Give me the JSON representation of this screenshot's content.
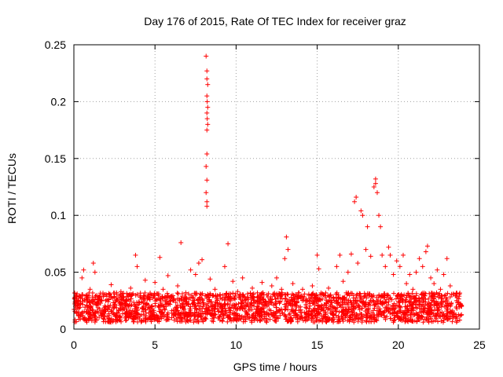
{
  "chart_data": {
    "type": "scatter",
    "title": "Day 176 of 2015, Rate Of TEC Index for receiver graz",
    "xlabel": "GPS time / hours",
    "ylabel": "ROTI / TECUs",
    "xlim": [
      0,
      25
    ],
    "ylim": [
      0,
      0.25
    ],
    "x_ticks": [
      0,
      5,
      10,
      15,
      20,
      25
    ],
    "y_ticks": [
      0,
      0.05,
      0.1,
      0.15,
      0.2,
      0.25
    ],
    "x_tick_labels": [
      "0",
      "5",
      "10",
      "15",
      "20",
      "25"
    ],
    "y_tick_labels": [
      "0",
      "0.05",
      "0.1",
      "0.15",
      "0.2",
      "0.25"
    ],
    "grid": true,
    "marker": "+",
    "color": "#ff0000",
    "series": [
      {
        "name": "ROTI",
        "points": [
          [
            0.1,
            0.02
          ],
          [
            0.2,
            0.031
          ],
          [
            0.3,
            0.015
          ],
          [
            0.5,
            0.045
          ],
          [
            0.6,
            0.052
          ],
          [
            0.8,
            0.028
          ],
          [
            1.0,
            0.035
          ],
          [
            1.2,
            0.058
          ],
          [
            1.3,
            0.05
          ],
          [
            1.5,
            0.022
          ],
          [
            1.8,
            0.03
          ],
          [
            2.1,
            0.018
          ],
          [
            2.3,
            0.039
          ],
          [
            2.6,
            0.025
          ],
          [
            2.9,
            0.033
          ],
          [
            3.2,
            0.021
          ],
          [
            3.5,
            0.036
          ],
          [
            3.8,
            0.065
          ],
          [
            3.9,
            0.055
          ],
          [
            4.1,
            0.028
          ],
          [
            4.4,
            0.043
          ],
          [
            4.7,
            0.03
          ],
          [
            5.0,
            0.041
          ],
          [
            5.3,
            0.063
          ],
          [
            5.5,
            0.035
          ],
          [
            5.8,
            0.047
          ],
          [
            6.1,
            0.025
          ],
          [
            6.4,
            0.038
          ],
          [
            6.6,
            0.076
          ],
          [
            6.9,
            0.032
          ],
          [
            7.2,
            0.052
          ],
          [
            7.5,
            0.048
          ],
          [
            7.7,
            0.058
          ],
          [
            7.9,
            0.061
          ],
          [
            8.15,
            0.24
          ],
          [
            8.2,
            0.227
          ],
          [
            8.2,
            0.22
          ],
          [
            8.25,
            0.215
          ],
          [
            8.2,
            0.205
          ],
          [
            8.22,
            0.2
          ],
          [
            8.25,
            0.195
          ],
          [
            8.2,
            0.19
          ],
          [
            8.22,
            0.185
          ],
          [
            8.25,
            0.18
          ],
          [
            8.2,
            0.175
          ],
          [
            8.2,
            0.154
          ],
          [
            8.15,
            0.143
          ],
          [
            8.2,
            0.131
          ],
          [
            8.15,
            0.12
          ],
          [
            8.2,
            0.112
          ],
          [
            8.2,
            0.108
          ],
          [
            8.4,
            0.044
          ],
          [
            8.7,
            0.035
          ],
          [
            9.0,
            0.03
          ],
          [
            9.3,
            0.055
          ],
          [
            9.5,
            0.075
          ],
          [
            9.8,
            0.042
          ],
          [
            10.1,
            0.033
          ],
          [
            10.4,
            0.045
          ],
          [
            10.7,
            0.028
          ],
          [
            11.0,
            0.036
          ],
          [
            11.3,
            0.024
          ],
          [
            11.6,
            0.041
          ],
          [
            11.9,
            0.03
          ],
          [
            12.2,
            0.038
          ],
          [
            12.5,
            0.045
          ],
          [
            12.8,
            0.035
          ],
          [
            13.0,
            0.062
          ],
          [
            13.1,
            0.081
          ],
          [
            13.2,
            0.07
          ],
          [
            13.5,
            0.04
          ],
          [
            13.8,
            0.028
          ],
          [
            14.1,
            0.035
          ],
          [
            14.4,
            0.025
          ],
          [
            14.7,
            0.038
          ],
          [
            15.0,
            0.065
          ],
          [
            15.1,
            0.053
          ],
          [
            15.4,
            0.03
          ],
          [
            15.7,
            0.036
          ],
          [
            16.0,
            0.028
          ],
          [
            16.2,
            0.055
          ],
          [
            16.4,
            0.065
          ],
          [
            16.6,
            0.042
          ],
          [
            16.9,
            0.05
          ],
          [
            17.1,
            0.066
          ],
          [
            17.3,
            0.112
          ],
          [
            17.4,
            0.116
          ],
          [
            17.5,
            0.058
          ],
          [
            17.7,
            0.104
          ],
          [
            17.8,
            0.1
          ],
          [
            18.0,
            0.07
          ],
          [
            18.1,
            0.09
          ],
          [
            18.3,
            0.064
          ],
          [
            18.5,
            0.125
          ],
          [
            18.6,
            0.132
          ],
          [
            18.6,
            0.128
          ],
          [
            18.7,
            0.12
          ],
          [
            18.8,
            0.1
          ],
          [
            18.9,
            0.09
          ],
          [
            19.0,
            0.065
          ],
          [
            19.2,
            0.055
          ],
          [
            19.4,
            0.072
          ],
          [
            19.5,
            0.065
          ],
          [
            19.7,
            0.048
          ],
          [
            19.9,
            0.06
          ],
          [
            20.1,
            0.055
          ],
          [
            20.3,
            0.065
          ],
          [
            20.5,
            0.04
          ],
          [
            20.7,
            0.048
          ],
          [
            20.9,
            0.035
          ],
          [
            21.1,
            0.05
          ],
          [
            21.3,
            0.062
          ],
          [
            21.5,
            0.055
          ],
          [
            21.7,
            0.068
          ],
          [
            21.8,
            0.073
          ],
          [
            22.0,
            0.045
          ],
          [
            22.2,
            0.04
          ],
          [
            22.4,
            0.052
          ],
          [
            22.6,
            0.035
          ],
          [
            22.8,
            0.048
          ],
          [
            23.0,
            0.062
          ],
          [
            23.2,
            0.038
          ],
          [
            23.4,
            0.031
          ],
          [
            23.6,
            0.025
          ],
          [
            23.8,
            0.022
          ],
          [
            23.9,
            0.02
          ]
        ]
      }
    ]
  }
}
